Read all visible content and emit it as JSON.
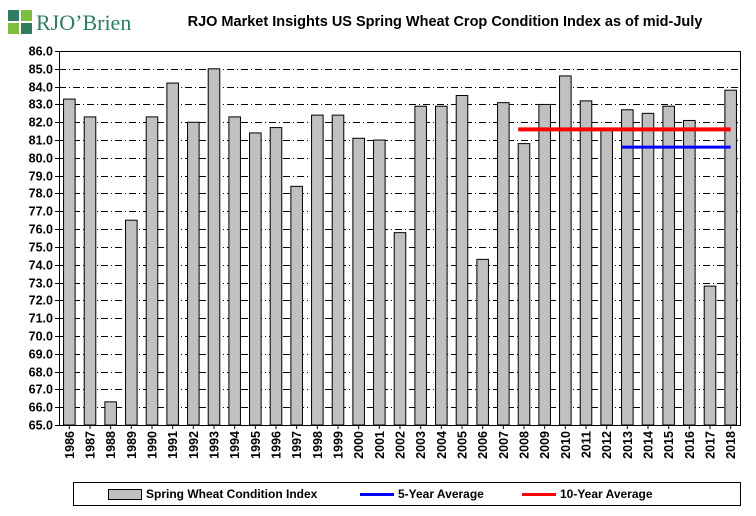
{
  "brand": {
    "name": "RJO'Brien",
    "logo_text": "RJO’Brien"
  },
  "chart_data": {
    "type": "bar",
    "title": "RJO Market Insights US Spring Wheat Crop Condition Index as of mid-July",
    "xlabel": "",
    "ylabel": "",
    "ylim": [
      65.0,
      86.0
    ],
    "ytick_step": 1.0,
    "grid": true,
    "categories": [
      "1986",
      "1987",
      "1988",
      "1989",
      "1990",
      "1991",
      "1992",
      "1993",
      "1994",
      "1995",
      "1996",
      "1997",
      "1998",
      "1999",
      "2000",
      "2001",
      "2002",
      "2003",
      "2004",
      "2005",
      "2006",
      "2007",
      "2008",
      "2009",
      "2010",
      "2011",
      "2012",
      "2013",
      "2014",
      "2015",
      "2016",
      "2017",
      "2018"
    ],
    "series": [
      {
        "name": "Spring Wheat Condition Index",
        "kind": "bar",
        "color": "#c0c0c0",
        "values": [
          83.3,
          82.3,
          66.3,
          76.5,
          82.3,
          84.2,
          82.0,
          85.0,
          82.3,
          81.4,
          81.7,
          78.4,
          82.4,
          82.4,
          81.1,
          81.0,
          75.8,
          82.9,
          82.9,
          83.5,
          74.3,
          83.1,
          80.8,
          83.0,
          84.6,
          83.2,
          81.6,
          82.7,
          82.5,
          82.9,
          82.1,
          72.8,
          83.8
        ]
      },
      {
        "name": "5-Year Average",
        "kind": "line",
        "color": "#0000ff",
        "from": "2013",
        "to": "2018",
        "value": 80.6
      },
      {
        "name": "10-Year Average",
        "kind": "line",
        "color": "#ff0000",
        "from": "2008",
        "to": "2018",
        "value": 81.6
      }
    ]
  }
}
